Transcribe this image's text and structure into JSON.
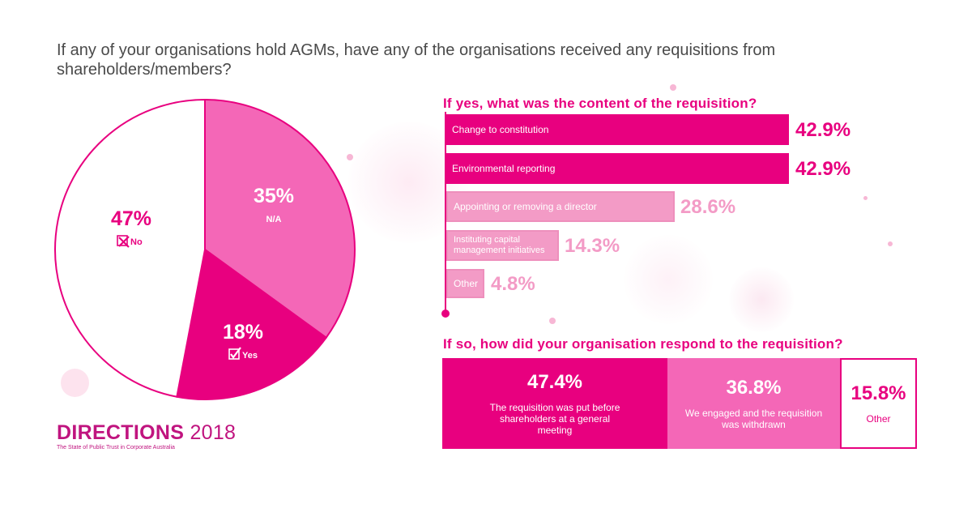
{
  "question": "If any of your organisations hold AGMs, have any of the organisations received any requisitions from shareholders/members?",
  "pie": {
    "slices": [
      {
        "label": "N/A",
        "value": 35,
        "display": "35%",
        "color": "#f467b7",
        "text_color": "#ffffff",
        "icon": ""
      },
      {
        "label": "Yes",
        "value": 18,
        "display": "18%",
        "color": "#e8007f",
        "text_color": "#ffffff",
        "icon": "checkbox-checked-icon"
      },
      {
        "label": "No",
        "value": 47,
        "display": "47%",
        "color": "#ffffff",
        "text_color": "#e8007f",
        "icon": "checkbox-crossed-icon"
      }
    ]
  },
  "content": {
    "title": "If yes, what was the content of the requisition?"
  },
  "response": {
    "title": "If so, how did your organisation respond to the requisition?"
  },
  "brand": {
    "name": "DIRECTIONS",
    "year": "2018",
    "tagline": "The State of Public Trust in Corporate Australia"
  },
  "colors": {
    "accent": "#e8007f",
    "light": "#f39bc6",
    "mid": "#f467b7"
  },
  "chart_data": [
    {
      "type": "pie",
      "categories": [
        "N/A",
        "Yes",
        "No"
      ],
      "values": [
        35,
        18,
        47
      ],
      "title": "If any of your organisations hold AGMs, have any of the organisations received any requisitions from shareholders/members?"
    },
    {
      "type": "bar",
      "title": "If yes, what was the content of the requisition?",
      "categories": [
        "Change to constitution",
        "Environmental reporting",
        "Appointing or removing a director",
        "Instituting capital management initiatives",
        "Other"
      ],
      "values": [
        42.9,
        42.9,
        28.6,
        14.3,
        4.8
      ],
      "labels": [
        "42.9%",
        "42.9%",
        "28.6%",
        "14.3%",
        "4.8%"
      ]
    },
    {
      "type": "bar",
      "title": "If so, how did your organisation respond to the requisition?",
      "categories": [
        "The requisition was put before shareholders at a general meeting",
        "We engaged and the requisition was withdrawn",
        "Other"
      ],
      "values": [
        47.4,
        36.8,
        15.8
      ],
      "labels": [
        "47.4%",
        "36.8%",
        "15.8%"
      ]
    }
  ]
}
